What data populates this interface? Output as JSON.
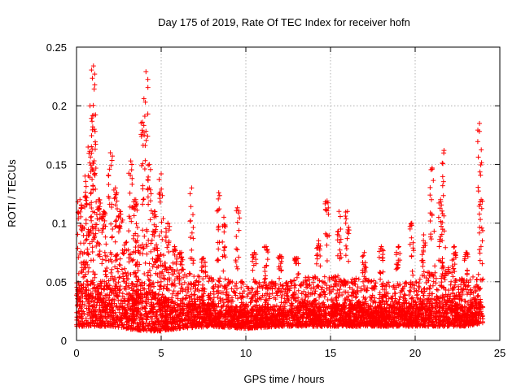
{
  "chart_data": {
    "type": "scatter",
    "title": "Day 175 of 2019, Rate Of TEC Index for receiver hofn",
    "xlabel": "GPS time / hours",
    "ylabel": "ROTI / TECUs",
    "xlim": [
      0,
      25
    ],
    "ylim": [
      0,
      0.25
    ],
    "xticks": [
      0,
      5,
      10,
      15,
      20,
      25
    ],
    "yticks": [
      0,
      0.05,
      0.1,
      0.15,
      0.2,
      0.25
    ],
    "xtick_labels": [
      "0",
      "5",
      "10",
      "15",
      "20",
      "25"
    ],
    "ytick_labels": [
      "0",
      "0.05",
      "0.1",
      "0.15",
      "0.2",
      "0.25"
    ],
    "grid": true,
    "marker": "+",
    "marker_color": "#ff0000",
    "time_range_hours": [
      0,
      24
    ],
    "bulk_band": [
      {
        "x": 0.0,
        "low": 0.012,
        "high": 0.095
      },
      {
        "x": 1.0,
        "low": 0.012,
        "high": 0.1
      },
      {
        "x": 2.0,
        "low": 0.012,
        "high": 0.09
      },
      {
        "x": 3.0,
        "low": 0.01,
        "high": 0.085
      },
      {
        "x": 4.0,
        "low": 0.008,
        "high": 0.1
      },
      {
        "x": 5.0,
        "low": 0.008,
        "high": 0.075
      },
      {
        "x": 6.0,
        "low": 0.01,
        "high": 0.06
      },
      {
        "x": 8.0,
        "low": 0.012,
        "high": 0.055
      },
      {
        "x": 10.0,
        "low": 0.01,
        "high": 0.05
      },
      {
        "x": 12.0,
        "low": 0.012,
        "high": 0.05
      },
      {
        "x": 14.0,
        "low": 0.012,
        "high": 0.055
      },
      {
        "x": 16.0,
        "low": 0.012,
        "high": 0.055
      },
      {
        "x": 18.0,
        "low": 0.012,
        "high": 0.05
      },
      {
        "x": 20.0,
        "low": 0.012,
        "high": 0.05
      },
      {
        "x": 21.5,
        "low": 0.012,
        "high": 0.07
      },
      {
        "x": 23.0,
        "low": 0.012,
        "high": 0.05
      },
      {
        "x": 24.0,
        "low": 0.015,
        "high": 0.06
      }
    ],
    "spikes": [
      {
        "x": 0.2,
        "top": 0.12
      },
      {
        "x": 0.5,
        "top": 0.14
      },
      {
        "x": 0.8,
        "top": 0.2
      },
      {
        "x": 0.95,
        "top": 0.163
      },
      {
        "x": 1.0,
        "top": 0.234
      },
      {
        "x": 1.05,
        "top": 0.18
      },
      {
        "x": 1.3,
        "top": 0.12
      },
      {
        "x": 1.6,
        "top": 0.11
      },
      {
        "x": 2.0,
        "top": 0.16
      },
      {
        "x": 2.3,
        "top": 0.13
      },
      {
        "x": 2.6,
        "top": 0.11
      },
      {
        "x": 3.2,
        "top": 0.153
      },
      {
        "x": 3.5,
        "top": 0.12
      },
      {
        "x": 3.9,
        "top": 0.186
      },
      {
        "x": 4.1,
        "top": 0.229
      },
      {
        "x": 4.3,
        "top": 0.15
      },
      {
        "x": 4.6,
        "top": 0.11
      },
      {
        "x": 5.0,
        "top": 0.142
      },
      {
        "x": 5.4,
        "top": 0.1
      },
      {
        "x": 5.8,
        "top": 0.08
      },
      {
        "x": 6.2,
        "top": 0.075
      },
      {
        "x": 6.8,
        "top": 0.13
      },
      {
        "x": 7.5,
        "top": 0.07
      },
      {
        "x": 8.4,
        "top": 0.126
      },
      {
        "x": 8.7,
        "top": 0.105
      },
      {
        "x": 9.5,
        "top": 0.113
      },
      {
        "x": 10.5,
        "top": 0.075
      },
      {
        "x": 11.2,
        "top": 0.08
      },
      {
        "x": 12.0,
        "top": 0.072
      },
      {
        "x": 13.0,
        "top": 0.07
      },
      {
        "x": 14.3,
        "top": 0.085
      },
      {
        "x": 14.8,
        "top": 0.119
      },
      {
        "x": 15.5,
        "top": 0.11
      },
      {
        "x": 16.0,
        "top": 0.11
      },
      {
        "x": 17.0,
        "top": 0.075
      },
      {
        "x": 18.0,
        "top": 0.08
      },
      {
        "x": 19.0,
        "top": 0.08
      },
      {
        "x": 19.8,
        "top": 0.1
      },
      {
        "x": 20.5,
        "top": 0.09
      },
      {
        "x": 21.0,
        "top": 0.147
      },
      {
        "x": 21.5,
        "top": 0.12
      },
      {
        "x": 21.7,
        "top": 0.162
      },
      {
        "x": 22.3,
        "top": 0.08
      },
      {
        "x": 23.0,
        "top": 0.075
      },
      {
        "x": 23.8,
        "top": 0.185
      },
      {
        "x": 23.9,
        "top": 0.12
      }
    ]
  }
}
